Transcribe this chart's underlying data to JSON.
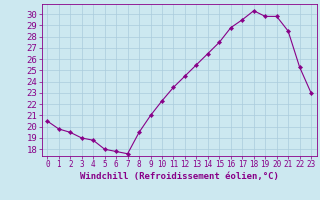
{
  "x": [
    0,
    1,
    2,
    3,
    4,
    5,
    6,
    7,
    8,
    9,
    10,
    11,
    12,
    13,
    14,
    15,
    16,
    17,
    18,
    19,
    20,
    21,
    22,
    23
  ],
  "y": [
    20.5,
    19.8,
    19.5,
    19.0,
    18.8,
    18.0,
    17.8,
    17.6,
    19.5,
    21.0,
    22.3,
    23.5,
    24.5,
    25.5,
    26.5,
    27.5,
    28.8,
    29.5,
    30.3,
    29.8,
    29.8,
    28.5,
    25.3,
    23.0
  ],
  "line_color": "#880088",
  "marker": "D",
  "marker_size": 2.2,
  "bg_color": "#cce8f0",
  "grid_color": "#aaccdd",
  "xlabel": "Windchill (Refroidissement éolien,°C)",
  "ylabel_ticks": [
    18,
    19,
    20,
    21,
    22,
    23,
    24,
    25,
    26,
    27,
    28,
    29,
    30
  ],
  "ylim": [
    17.4,
    30.9
  ],
  "xlim": [
    -0.5,
    23.5
  ],
  "xlabel_fontsize": 6.5,
  "tick_fontsize": 6.5,
  "tick_color": "#880088",
  "axis_color": "#880088"
}
